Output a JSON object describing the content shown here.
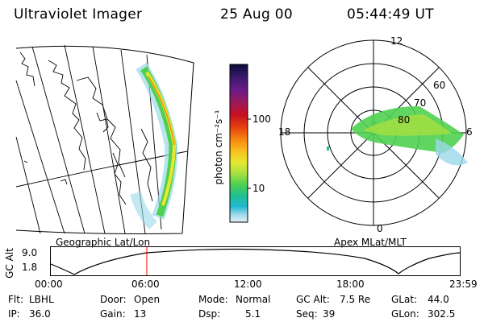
{
  "header": {
    "instrument": "Ultraviolet Imager",
    "date": "25 Aug 00",
    "time": "05:44:49 UT"
  },
  "geo_panel": {
    "caption": "Geographic Lat/Lon"
  },
  "polar_panel": {
    "caption": "Apex MLat/MLT",
    "mlt_labels": {
      "top": "12",
      "left": "18",
      "right": "6",
      "bottom": "0"
    },
    "lat_labels": [
      "60",
      "70",
      "80"
    ]
  },
  "colorbar": {
    "unit_label": "photon cm⁻²s⁻¹",
    "ticks": [
      "100",
      "10"
    ],
    "colors": [
      "#0a0a3a",
      "#3a1a6a",
      "#6a1a8a",
      "#9a1a5a",
      "#c81020",
      "#e84010",
      "#f88a10",
      "#f8c020",
      "#e8e830",
      "#a8e040",
      "#50d050",
      "#20c090",
      "#20b8d0",
      "#9ad8e8",
      "#dff0f5"
    ]
  },
  "altitude_plot": {
    "ylabel": "GC Alt",
    "yticks": [
      "9.0",
      "1.8"
    ],
    "xticks": [
      "00:00",
      "06:00",
      "12:00",
      "18:00",
      "23:59"
    ],
    "cursor_color": "#ff0000"
  },
  "info": [
    [
      {
        "k": "Flt:",
        "v": "LBHL"
      },
      {
        "k": "Door:",
        "v": "Open"
      },
      {
        "k": "Mode:",
        "v": "Normal"
      },
      {
        "k": "GC Alt:",
        "v": "7.5 Re"
      },
      {
        "k": "GLat:",
        "v": "44.0"
      }
    ],
    [
      {
        "k": "IP:",
        "v": "36.0"
      },
      {
        "k": "Gain:",
        "v": "13"
      },
      {
        "k": "Dsp:",
        "v": "5.1"
      },
      {
        "k": "Seq:",
        "v": "39"
      },
      {
        "k": "GLon:",
        "v": "302.5"
      }
    ]
  ]
}
